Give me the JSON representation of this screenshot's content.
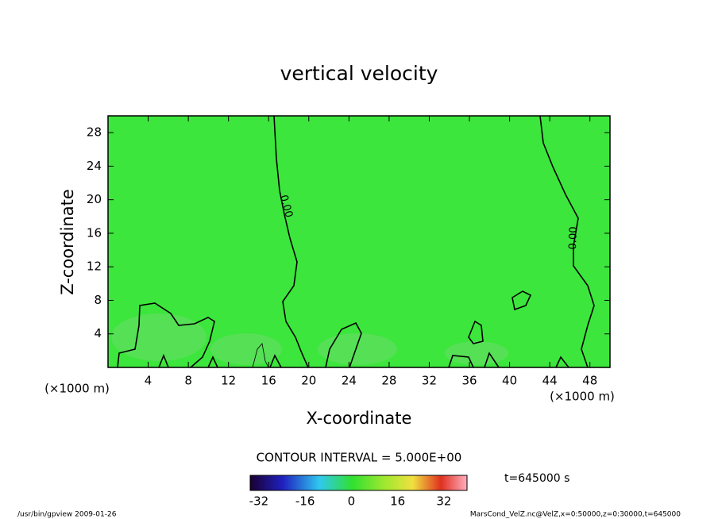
{
  "chart_data": {
    "type": "contour",
    "title": "vertical velocity",
    "x_label": "X-coordinate",
    "y_label": "Z-coordinate",
    "x_unit": "(×1000 m)",
    "y_unit": "(×1000 m)",
    "xlim": [
      0,
      50
    ],
    "xticks": [
      4,
      8,
      12,
      16,
      20,
      24,
      28,
      32,
      36,
      40,
      44,
      48
    ],
    "ylim": [
      0,
      30
    ],
    "yticks": [
      4,
      8,
      12,
      16,
      20,
      24,
      28
    ],
    "contours": [
      {
        "value": 0,
        "label": "0.00"
      }
    ],
    "contour_interval": "CONTOUR INTERVAL = 5.000E+00",
    "clim": [
      -35,
      40
    ],
    "cticks": [
      -32,
      -16,
      0,
      16,
      32
    ],
    "time_label": "t=645000 s",
    "footer_left": "/usr/bin/gpview  2009-01-26",
    "footer_right": "MarsCond_VelZ.nc@VelZ,x=0:50000,z=0:30000,t=645000"
  }
}
